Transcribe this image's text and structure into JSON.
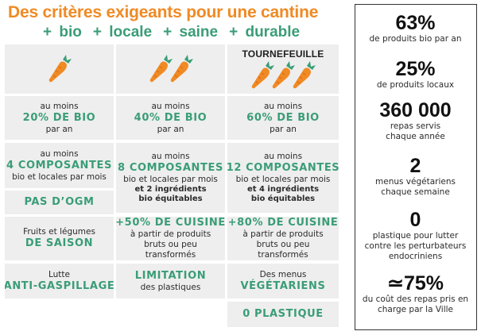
{
  "header": {
    "title": "Des critères exigeants pour une cantine",
    "tags": [
      "+ bio",
      "+ locale",
      "+ saine",
      "+ durable"
    ]
  },
  "columns": [
    {
      "carrot_count": 1,
      "label": ""
    },
    {
      "carrot_count": 2,
      "label": ""
    },
    {
      "carrot_count": 3,
      "label": "TOURNEFEUILLE"
    }
  ],
  "rows": {
    "bio": [
      {
        "pre": "au moins",
        "value": "20% DE BIO",
        "post": "par an"
      },
      {
        "pre": "au moins",
        "value": "40% DE BIO",
        "post": "par an"
      },
      {
        "pre": "au moins",
        "value": "60% DE BIO",
        "post": "par an"
      }
    ],
    "composantes": [
      {
        "pre": "au moins",
        "value": "4 COMPOSANTES",
        "post": "bio et locales par mois",
        "extra": ""
      },
      {
        "pre": "au moins",
        "value": "8 COMPOSANTES",
        "post": "bio et locales par mois",
        "extra": "et 2 ingrédients bio équitables"
      },
      {
        "pre": "au moins",
        "value": "12 COMPOSANTES",
        "post": "bio et locales par mois",
        "extra": "et 4 ingrédients bio équitables"
      }
    ],
    "ogm": {
      "value": "PAS D’OGM"
    },
    "saison": [
      {
        "pre": "Fruits et légumes",
        "value": "DE SAISON",
        "post": ""
      },
      {
        "pre": "",
        "value": "+50% DE CUISINE",
        "post": "à partir de produits bruts ou peu transformés"
      },
      {
        "pre": "",
        "value": "+80% DE CUISINE",
        "post": "à partir de produits bruts ou peu transformés"
      }
    ],
    "gaspillage": [
      {
        "pre": "Lutte",
        "value": "ANTI-GASPILLAGE",
        "post": ""
      },
      {
        "pre": "",
        "value": "LIMITATION",
        "post": "des plastiques"
      },
      {
        "pre": "Des menus",
        "value": "VÉGÉTARIENS",
        "post": ""
      }
    ],
    "plastique": {
      "value": "0 PLASTIQUE"
    }
  },
  "stats": [
    {
      "number": "63%",
      "text": "de produits bio par an"
    },
    {
      "number": "25%",
      "text": "de produits locaux"
    },
    {
      "number": "360 000",
      "text": "repas servis chaque année"
    },
    {
      "number": "2",
      "text": "menus végétariens chaque semaine"
    },
    {
      "number": "0",
      "text": "plastique pour lutter contre les perturbateurs endocriniens"
    },
    {
      "number": "≃75%",
      "text": "du coût des repas pris en charge par la Ville"
    }
  ],
  "colors": {
    "orange": "#f08a24",
    "green": "#3a9d77",
    "cell_bg": "#eeeeee",
    "dark": "#111111"
  }
}
